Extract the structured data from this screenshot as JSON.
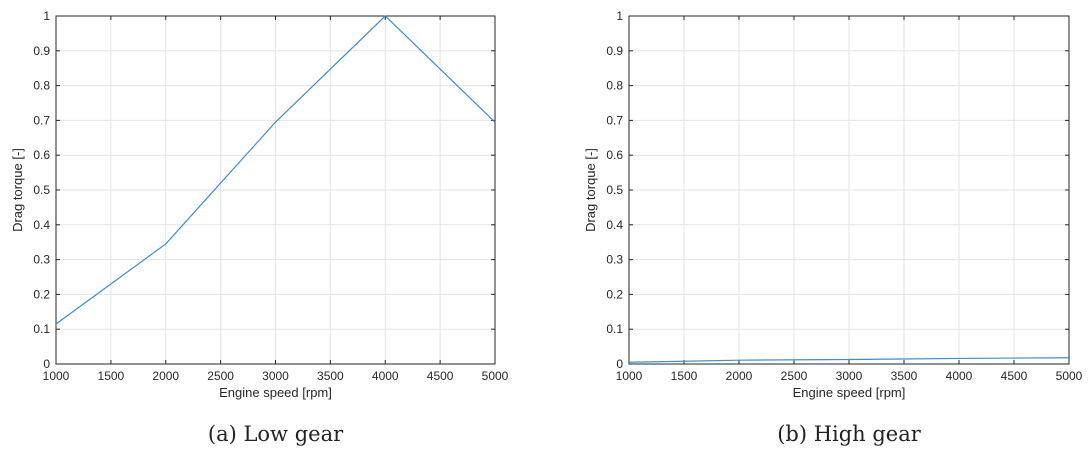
{
  "chart_data": [
    {
      "type": "line",
      "caption": "(a) Low gear",
      "xlabel": "Engine speed [rpm]",
      "ylabel": "Drag torque [-]",
      "xlim": [
        1000,
        5000
      ],
      "ylim": [
        0,
        1
      ],
      "xticks": [
        "1000",
        "1500",
        "2000",
        "2500",
        "3000",
        "3500",
        "4000",
        "4500",
        "5000"
      ],
      "yticks": [
        "0",
        "0.1",
        "0.2",
        "0.3",
        "0.4",
        "0.5",
        "0.6",
        "0.7",
        "0.8",
        "0.9",
        "1"
      ],
      "grid": true,
      "color": "#3a8ed1",
      "series": [
        {
          "x": [
            1000,
            2000,
            3000,
            4000,
            5000
          ],
          "y": [
            0.115,
            0.345,
            0.695,
            1.0,
            0.695
          ]
        }
      ]
    },
    {
      "type": "line",
      "caption": "(b) High gear",
      "xlabel": "Engine speed [rpm]",
      "ylabel": "Drag torque [-]",
      "xlim": [
        1000,
        5000
      ],
      "ylim": [
        0,
        1
      ],
      "xticks": [
        "1000",
        "1500",
        "2000",
        "2500",
        "3000",
        "3500",
        "4000",
        "4500",
        "5000"
      ],
      "yticks": [
        "0",
        "0.1",
        "0.2",
        "0.3",
        "0.4",
        "0.5",
        "0.6",
        "0.7",
        "0.8",
        "0.9",
        "1"
      ],
      "grid": true,
      "color": "#3a8ed1",
      "series": [
        {
          "x": [
            1000,
            1500,
            2000,
            3000,
            4000,
            5000
          ],
          "y": [
            0.005,
            0.008,
            0.011,
            0.013,
            0.016,
            0.018
          ]
        }
      ]
    }
  ]
}
